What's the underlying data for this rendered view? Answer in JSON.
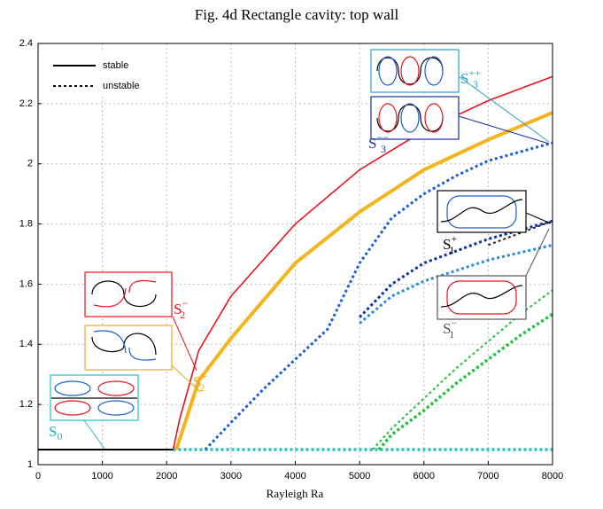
{
  "chart_data": {
    "type": "line",
    "title": "Fig. 4d     Rectangle cavity: top wall",
    "xlabel": "Rayleigh Ra",
    "xlim": [
      0,
      8000
    ],
    "ylim": [
      1,
      2.4
    ],
    "xticks": [
      0,
      1000,
      2000,
      3000,
      4000,
      5000,
      6000,
      7000,
      8000
    ],
    "yticks": [
      1,
      1.2,
      1.4,
      1.6,
      1.8,
      2,
      2.2,
      2.4
    ],
    "grid": true,
    "legend": [
      {
        "label": "stable",
        "style": "solid"
      },
      {
        "label": "unstable",
        "style": "dashed"
      }
    ],
    "series": [
      {
        "color": "#000000",
        "style": "solid",
        "width": 2,
        "x": [
          0,
          2100
        ],
        "values": [
          1.05,
          1.05
        ]
      },
      {
        "color": "#22c1c3",
        "style": "dashed",
        "width": 3.5,
        "x": [
          2100,
          8000
        ],
        "values": [
          1.05,
          1.05
        ]
      },
      {
        "color": "#e8141c",
        "style": "solid",
        "width": 1.6,
        "x": [
          2100,
          2200,
          2500,
          3000,
          4000,
          5000,
          6000,
          7000,
          8000
        ],
        "values": [
          1.05,
          1.15,
          1.38,
          1.56,
          1.8,
          1.98,
          2.11,
          2.21,
          2.29
        ]
      },
      {
        "color": "#f5b31c",
        "style": "solid",
        "width": 4,
        "x": [
          2150,
          2500,
          3000,
          4000,
          5000,
          6000,
          7000,
          8000
        ],
        "values": [
          1.05,
          1.28,
          1.42,
          1.67,
          1.84,
          1.98,
          2.08,
          2.17
        ]
      },
      {
        "color": "#1a5fd0",
        "style": "dashed",
        "width": 3,
        "x": [
          2600,
          3000,
          3500,
          4000,
          4500,
          5000,
          5500,
          6000,
          6500,
          7000,
          7500,
          8000
        ],
        "values": [
          1.05,
          1.14,
          1.25,
          1.35,
          1.45,
          1.67,
          1.82,
          1.9,
          1.96,
          2.01,
          2.04,
          2.07
        ]
      },
      {
        "color": "#2a8ae0",
        "style": "dashed",
        "width": 3,
        "x": [
          5000,
          5500,
          6000,
          7000,
          8000
        ],
        "values": [
          1.47,
          1.56,
          1.61,
          1.68,
          1.73
        ]
      },
      {
        "color": "#0d2fa8",
        "style": "dashed",
        "width": 3,
        "x": [
          5000,
          5500,
          6000,
          7000,
          8000
        ],
        "values": [
          1.49,
          1.6,
          1.67,
          1.75,
          1.81
        ]
      },
      {
        "color": "#1fc13a",
        "style": "dashed",
        "width": 2,
        "x": [
          5200,
          5500,
          6000,
          6500,
          7000,
          7500,
          8000
        ],
        "values": [
          1.05,
          1.12,
          1.22,
          1.32,
          1.41,
          1.5,
          1.58
        ]
      },
      {
        "color": "#1fc13a",
        "style": "dashed",
        "width": 3.5,
        "x": [
          5300,
          5500,
          6000,
          6500,
          7000,
          7500,
          8000
        ],
        "values": [
          1.05,
          1.1,
          1.18,
          1.27,
          1.35,
          1.43,
          1.5
        ]
      },
      {
        "color": "#222222",
        "style": "dashed",
        "width": 2,
        "x": [
          7000,
          7500,
          8000
        ],
        "values": [
          1.73,
          1.77,
          1.81
        ]
      }
    ],
    "annotations": [
      {
        "text": "S",
        "sub": "0",
        "color": "#22b5c0"
      },
      {
        "text": "S",
        "sub": "2",
        "sup": "+",
        "color": "#f5a81c"
      },
      {
        "text": "S",
        "sub": "2",
        "sup": "−",
        "color": "#e8141c"
      },
      {
        "text": "S",
        "sub": "3",
        "sup": "++",
        "color": "#2aa0c8"
      },
      {
        "text": "S",
        "sub": "3",
        "sup": "−−",
        "color": "#1a2fa8"
      },
      {
        "text": "S",
        "sub": "1",
        "sup": "+",
        "color": "#000000"
      },
      {
        "text": "S",
        "sub": "1",
        "sup": "−",
        "color": "#555555"
      }
    ]
  }
}
